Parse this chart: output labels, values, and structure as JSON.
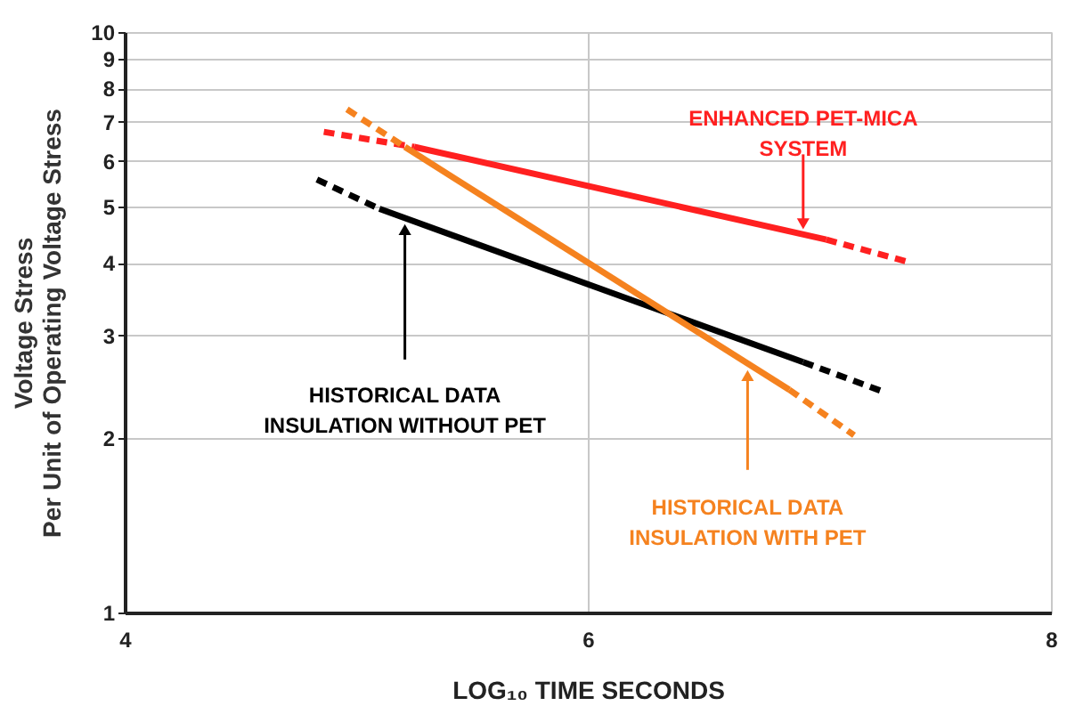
{
  "chart_data": {
    "type": "line",
    "xlabel": "LOG₁₀ TIME SECONDS",
    "ylabel": "Voltage Stress\nPer Unit of Operating Voltage Stress",
    "xlim": [
      4,
      8
    ],
    "xticks": [
      4,
      6,
      8
    ],
    "ylim": [
      1,
      10
    ],
    "yticks": [
      1,
      2,
      3,
      4,
      5,
      6,
      7,
      8,
      9,
      10
    ],
    "log": "y",
    "grid": true,
    "marker": "none",
    "series": [
      {
        "color": "#000000",
        "line_style": "solid",
        "x": [
          5.1,
          6.93
        ],
        "values": [
          4.96,
          2.7
        ]
      },
      {
        "color": "#000000",
        "line_style": "dashed",
        "x": [
          4.83,
          5.1,
          6.0,
          6.93,
          7.29
        ],
        "values": [
          5.57,
          4.96,
          null,
          2.7,
          2.39
        ]
      },
      {
        "color": "#ff2020",
        "line_style": "solid",
        "x": [
          5.25,
          7.03
        ],
        "values": [
          6.34,
          4.39
        ]
      },
      {
        "color": "#ff2020",
        "line_style": "dashed",
        "x": [
          4.86,
          5.25,
          6.0,
          7.03,
          7.39
        ],
        "values": [
          6.73,
          6.34,
          null,
          4.39,
          4.01
        ]
      },
      {
        "color": "#f5821f",
        "line_style": "solid",
        "x": [
          5.21,
          6.87
        ],
        "values": [
          6.34,
          2.42
        ]
      },
      {
        "color": "#f5821f",
        "line_style": "dashed",
        "x": [
          4.96,
          5.21,
          6.0,
          6.87,
          7.15
        ],
        "values": [
          7.36,
          6.34,
          null,
          2.42,
          2.02
        ]
      }
    ],
    "annotations": [
      {
        "text": "HISTORICAL DATA\nINSULATION WITHOUT PET",
        "x": 5.21,
        "y": 4.8
      },
      {
        "text": "ENHANCED PET-MICA\nSYSTEM",
        "x": 6.93,
        "y": 4.48
      },
      {
        "text": "HISTORICAL DATA\nINSULATION WITH PET",
        "x": 6.69,
        "y": 2.69
      }
    ]
  }
}
